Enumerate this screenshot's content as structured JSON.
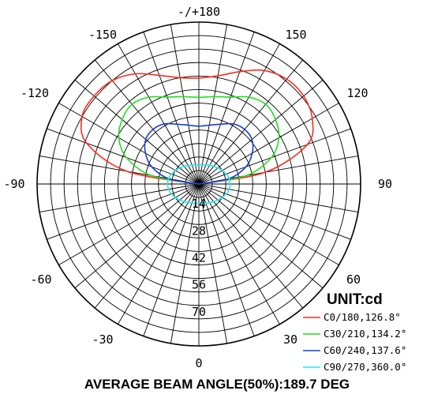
{
  "chart_data": {
    "type": "polar",
    "angle_labels": [
      {
        "angle": 180,
        "text": "-/+180"
      },
      {
        "angle": 150,
        "text": "150"
      },
      {
        "angle": -150,
        "text": "-150"
      },
      {
        "angle": 120,
        "text": "120"
      },
      {
        "angle": -120,
        "text": "-120"
      },
      {
        "angle": 90,
        "text": "90"
      },
      {
        "angle": -90,
        "text": "-90"
      },
      {
        "angle": 60,
        "text": "60"
      },
      {
        "angle": -60,
        "text": "-60"
      },
      {
        "angle": 30,
        "text": "30"
      },
      {
        "angle": -30,
        "text": "-30"
      },
      {
        "angle": 0,
        "text": "0"
      }
    ],
    "radial_ticks": [
      {
        "value": 14,
        "text": "14"
      },
      {
        "value": 28,
        "text": "28"
      },
      {
        "value": 42,
        "text": "42"
      },
      {
        "value": 56,
        "text": "56"
      },
      {
        "value": 70,
        "text": "70"
      }
    ],
    "r_max": 84,
    "ring_count": 12,
    "spoke_step_deg": 10,
    "unit_label": "UNIT:cd",
    "title": "AVERAGE BEAM ANGLE(50%):189.7 DEG",
    "series": [
      {
        "name": "C0/180,126.8°",
        "color": "#ff2a1a",
        "points": [
          [
            90,
            0
          ],
          [
            100,
            35
          ],
          [
            110,
            60
          ],
          [
            120,
            68
          ],
          [
            130,
            71
          ],
          [
            140,
            71
          ],
          [
            150,
            68
          ],
          [
            160,
            62
          ],
          [
            170,
            57
          ],
          [
            180,
            55
          ],
          [
            190,
            56
          ],
          [
            200,
            60
          ],
          [
            210,
            66
          ],
          [
            220,
            70
          ],
          [
            230,
            71
          ],
          [
            240,
            70
          ],
          [
            250,
            62
          ],
          [
            260,
            38
          ],
          [
            270,
            0
          ]
        ]
      },
      {
        "name": "C30/210,134.2°",
        "color": "#22dd22",
        "points": [
          [
            90,
            0
          ],
          [
            100,
            25
          ],
          [
            110,
            40
          ],
          [
            120,
            48
          ],
          [
            130,
            52
          ],
          [
            140,
            54
          ],
          [
            150,
            52
          ],
          [
            160,
            48
          ],
          [
            170,
            46
          ],
          [
            180,
            45
          ],
          [
            190,
            46
          ],
          [
            200,
            48
          ],
          [
            210,
            52
          ],
          [
            220,
            54
          ],
          [
            230,
            52
          ],
          [
            240,
            48
          ],
          [
            250,
            40
          ],
          [
            260,
            25
          ],
          [
            270,
            0
          ]
        ]
      },
      {
        "name": "C60/240,137.6°",
        "color": "#1a3fd8",
        "points": [
          [
            90,
            0
          ],
          [
            100,
            16
          ],
          [
            110,
            26
          ],
          [
            120,
            32
          ],
          [
            130,
            36
          ],
          [
            140,
            37
          ],
          [
            150,
            36
          ],
          [
            160,
            33
          ],
          [
            170,
            31
          ],
          [
            180,
            30
          ],
          [
            190,
            31
          ],
          [
            200,
            33
          ],
          [
            210,
            36
          ],
          [
            220,
            37
          ],
          [
            230,
            36
          ],
          [
            240,
            32
          ],
          [
            250,
            26
          ],
          [
            260,
            16
          ],
          [
            270,
            0
          ]
        ]
      },
      {
        "name": "C90/270,360.0°",
        "color": "#22e6ee",
        "points": [
          [
            0,
            10
          ],
          [
            20,
            10.5
          ],
          [
            40,
            12
          ],
          [
            60,
            14
          ],
          [
            80,
            16
          ],
          [
            100,
            16
          ],
          [
            120,
            14
          ],
          [
            140,
            12
          ],
          [
            160,
            10.5
          ],
          [
            180,
            10
          ],
          [
            200,
            10.5
          ],
          [
            220,
            12
          ],
          [
            240,
            14
          ],
          [
            260,
            16
          ],
          [
            280,
            16
          ],
          [
            300,
            14
          ],
          [
            320,
            12
          ],
          [
            340,
            10.5
          ],
          [
            360,
            10
          ]
        ]
      }
    ]
  }
}
